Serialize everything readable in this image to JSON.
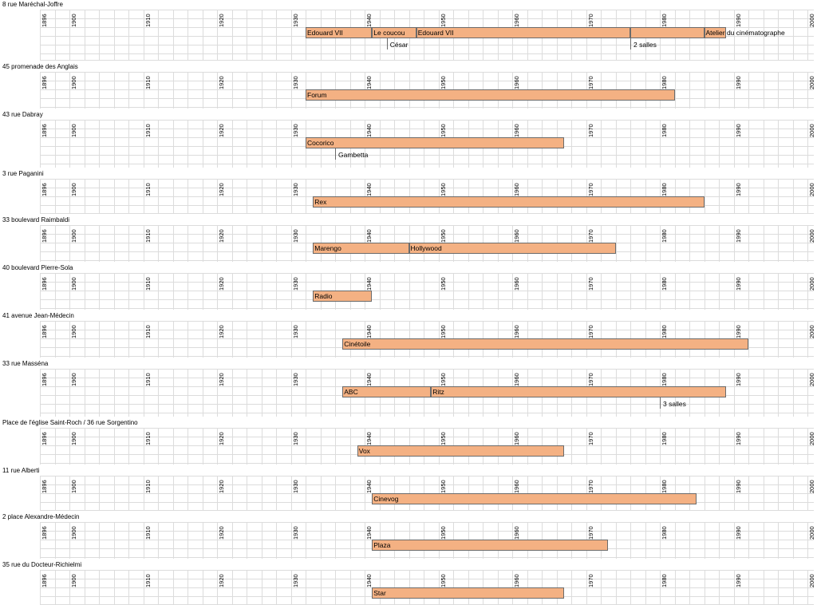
{
  "timeline": {
    "year_start": 1896,
    "year_end": 2000,
    "tick_labels": [
      "1896",
      "1900",
      "1910",
      "1920",
      "1930",
      "1940",
      "1950",
      "1960",
      "1970",
      "1980",
      "1990",
      "2000"
    ],
    "bar_color": "#f4b183"
  },
  "venues": [
    {
      "address": "8 rue Maréchal-Joffre",
      "names": [
        {
          "label": "Edouard VII",
          "start": 1932,
          "end": 1941
        },
        {
          "label": "Le coucou",
          "start": 1941,
          "end": 1947
        },
        {
          "label": "Edouard VII",
          "start": 1947,
          "end": 1976
        },
        {
          "label": "",
          "start": 1976,
          "end": 1986
        },
        {
          "label": "Atelier du cinématographe",
          "start": 1986,
          "end": 1989
        }
      ],
      "sub": [
        {
          "label": "César",
          "year": 1943
        },
        {
          "label": "2 salles",
          "year": 1976
        }
      ]
    },
    {
      "address": "45 promenade des Anglais",
      "names": [
        {
          "label": "Forum",
          "start": 1932,
          "end": 1982
        }
      ],
      "sub": []
    },
    {
      "address": "43 rue Dabray",
      "names": [
        {
          "label": "Cocorico",
          "start": 1932,
          "end": 1967
        }
      ],
      "sub": [
        {
          "label": "Gambetta",
          "year": 1936
        }
      ]
    },
    {
      "address": "3 rue Paganini",
      "names": [
        {
          "label": "Rex",
          "start": 1933,
          "end": 1986
        }
      ],
      "sub": []
    },
    {
      "address": "33 boulevard Raimbaldi",
      "names": [
        {
          "label": "Marengo",
          "start": 1933,
          "end": 1946
        },
        {
          "label": "Hollywood",
          "start": 1946,
          "end": 1974
        }
      ],
      "sub": []
    },
    {
      "address": "40 boulevard Pierre-Sola",
      "names": [
        {
          "label": "Radio",
          "start": 1933,
          "end": 1941
        }
      ],
      "sub": []
    },
    {
      "address": "41 avenue Jean-Médecin",
      "names": [
        {
          "label": "Cinétoile",
          "start": 1937,
          "end": 1992
        }
      ],
      "sub": []
    },
    {
      "address": "33 rue Masséna",
      "names": [
        {
          "label": "ABC",
          "start": 1937,
          "end": 1949
        },
        {
          "label": "Ritz",
          "start": 1949,
          "end": 1989
        }
      ],
      "sub": [
        {
          "label": "3 salles",
          "year": 1980
        }
      ]
    },
    {
      "address": "Place de l'église Saint-Roch / 36 rue Sorgentino",
      "names": [
        {
          "label": "Vox",
          "start": 1939,
          "end": 1967
        }
      ],
      "sub": []
    },
    {
      "address": "11 rue Alberti",
      "names": [
        {
          "label": "Cinevog",
          "start": 1941,
          "end": 1985
        }
      ],
      "sub": []
    },
    {
      "address": "2 place Alexandre-Médecin",
      "names": [
        {
          "label": "Plaza",
          "start": 1941,
          "end": 1973
        }
      ],
      "sub": []
    },
    {
      "address": "35 rue du Docteur-Richielmi",
      "names": [
        {
          "label": "Star",
          "start": 1941,
          "end": 1967
        }
      ],
      "sub": []
    }
  ]
}
